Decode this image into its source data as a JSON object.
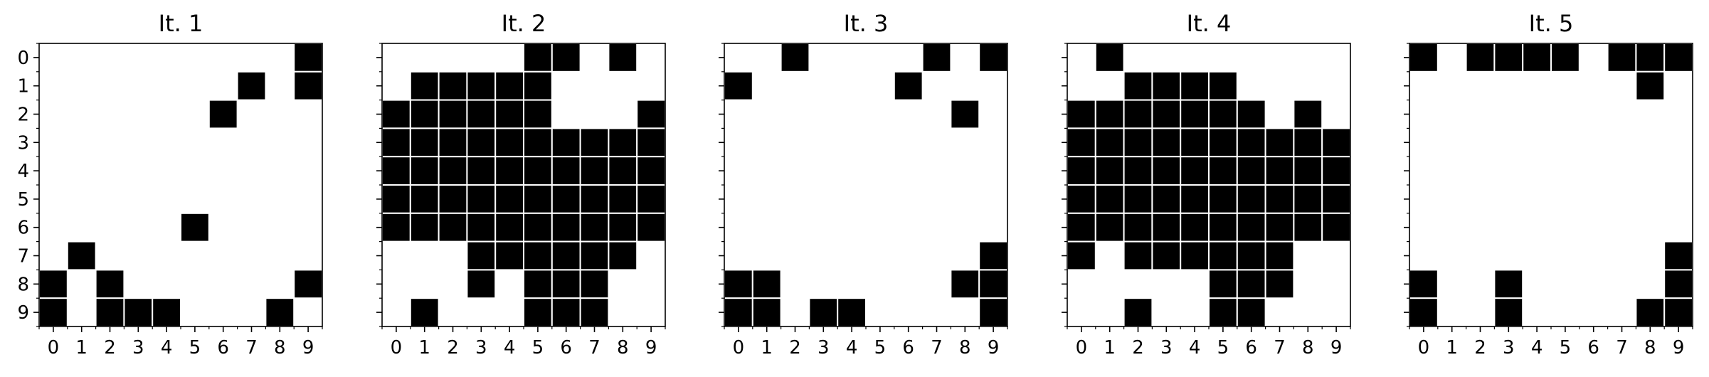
{
  "chart_data": [
    {
      "type": "heatmap",
      "title": "It. 1",
      "xticks": [
        "0",
        "1",
        "2",
        "3",
        "4",
        "5",
        "6",
        "7",
        "8",
        "9"
      ],
      "yticks": [
        "0",
        "1",
        "2",
        "3",
        "4",
        "5",
        "6",
        "7",
        "8",
        "9"
      ],
      "colors": {
        "filled": "#000000",
        "empty": "#ffffff",
        "grid": "#ffffff"
      },
      "grid": [
        [
          0,
          0,
          0,
          0,
          0,
          0,
          0,
          0,
          0,
          1
        ],
        [
          0,
          0,
          0,
          0,
          0,
          0,
          0,
          1,
          0,
          1
        ],
        [
          0,
          0,
          0,
          0,
          0,
          0,
          1,
          0,
          0,
          0
        ],
        [
          0,
          0,
          0,
          0,
          0,
          0,
          0,
          0,
          0,
          0
        ],
        [
          0,
          0,
          0,
          0,
          0,
          0,
          0,
          0,
          0,
          0
        ],
        [
          0,
          0,
          0,
          0,
          0,
          0,
          0,
          0,
          0,
          0
        ],
        [
          0,
          0,
          0,
          0,
          0,
          1,
          0,
          0,
          0,
          0
        ],
        [
          0,
          1,
          0,
          0,
          0,
          0,
          0,
          0,
          0,
          0
        ],
        [
          1,
          0,
          1,
          0,
          0,
          0,
          0,
          0,
          0,
          1
        ],
        [
          1,
          0,
          1,
          1,
          1,
          0,
          0,
          0,
          1,
          0
        ]
      ]
    },
    {
      "type": "heatmap",
      "title": "It. 2",
      "xticks": [
        "0",
        "1",
        "2",
        "3",
        "4",
        "5",
        "6",
        "7",
        "8",
        "9"
      ],
      "yticks": [],
      "colors": {
        "filled": "#000000",
        "empty": "#ffffff",
        "grid": "#ffffff"
      },
      "grid": [
        [
          0,
          0,
          0,
          0,
          0,
          1,
          1,
          0,
          1,
          0
        ],
        [
          0,
          1,
          1,
          1,
          1,
          1,
          0,
          0,
          0,
          0
        ],
        [
          1,
          1,
          1,
          1,
          1,
          1,
          0,
          0,
          0,
          1
        ],
        [
          1,
          1,
          1,
          1,
          1,
          1,
          1,
          1,
          1,
          1
        ],
        [
          1,
          1,
          1,
          1,
          1,
          1,
          1,
          1,
          1,
          1
        ],
        [
          1,
          1,
          1,
          1,
          1,
          1,
          1,
          1,
          1,
          1
        ],
        [
          1,
          1,
          1,
          1,
          1,
          1,
          1,
          1,
          1,
          1
        ],
        [
          0,
          0,
          0,
          1,
          1,
          1,
          1,
          1,
          1,
          0
        ],
        [
          0,
          0,
          0,
          1,
          0,
          1,
          1,
          1,
          0,
          0
        ],
        [
          0,
          1,
          0,
          0,
          0,
          1,
          1,
          1,
          0,
          0
        ]
      ]
    },
    {
      "type": "heatmap",
      "title": "It. 3",
      "xticks": [
        "0",
        "1",
        "2",
        "3",
        "4",
        "5",
        "6",
        "7",
        "8",
        "9"
      ],
      "yticks": [],
      "colors": {
        "filled": "#000000",
        "empty": "#ffffff",
        "grid": "#ffffff"
      },
      "grid": [
        [
          0,
          0,
          1,
          0,
          0,
          0,
          0,
          1,
          0,
          1
        ],
        [
          1,
          0,
          0,
          0,
          0,
          0,
          1,
          0,
          0,
          0
        ],
        [
          0,
          0,
          0,
          0,
          0,
          0,
          0,
          0,
          1,
          0
        ],
        [
          0,
          0,
          0,
          0,
          0,
          0,
          0,
          0,
          0,
          0
        ],
        [
          0,
          0,
          0,
          0,
          0,
          0,
          0,
          0,
          0,
          0
        ],
        [
          0,
          0,
          0,
          0,
          0,
          0,
          0,
          0,
          0,
          0
        ],
        [
          0,
          0,
          0,
          0,
          0,
          0,
          0,
          0,
          0,
          0
        ],
        [
          0,
          0,
          0,
          0,
          0,
          0,
          0,
          0,
          0,
          1
        ],
        [
          1,
          1,
          0,
          0,
          0,
          0,
          0,
          0,
          1,
          1
        ],
        [
          1,
          1,
          0,
          1,
          1,
          0,
          0,
          0,
          0,
          1
        ]
      ]
    },
    {
      "type": "heatmap",
      "title": "It. 4",
      "xticks": [
        "0",
        "1",
        "2",
        "3",
        "4",
        "5",
        "6",
        "7",
        "8",
        "9"
      ],
      "yticks": [],
      "colors": {
        "filled": "#000000",
        "empty": "#ffffff",
        "grid": "#ffffff"
      },
      "grid": [
        [
          0,
          1,
          0,
          0,
          0,
          0,
          0,
          0,
          0,
          0
        ],
        [
          0,
          0,
          1,
          1,
          1,
          1,
          0,
          0,
          0,
          0
        ],
        [
          1,
          1,
          1,
          1,
          1,
          1,
          1,
          0,
          1,
          0
        ],
        [
          1,
          1,
          1,
          1,
          1,
          1,
          1,
          1,
          1,
          1
        ],
        [
          1,
          1,
          1,
          1,
          1,
          1,
          1,
          1,
          1,
          1
        ],
        [
          1,
          1,
          1,
          1,
          1,
          1,
          1,
          1,
          1,
          1
        ],
        [
          1,
          1,
          1,
          1,
          1,
          1,
          1,
          1,
          1,
          1
        ],
        [
          1,
          0,
          1,
          1,
          1,
          1,
          1,
          1,
          0,
          0
        ],
        [
          0,
          0,
          0,
          0,
          0,
          1,
          1,
          1,
          0,
          0
        ],
        [
          0,
          0,
          1,
          0,
          0,
          1,
          1,
          0,
          0,
          0
        ]
      ]
    },
    {
      "type": "heatmap",
      "title": "It. 5",
      "xticks": [
        "0",
        "1",
        "2",
        "3",
        "4",
        "5",
        "6",
        "7",
        "8",
        "9"
      ],
      "yticks": [],
      "colors": {
        "filled": "#000000",
        "empty": "#ffffff",
        "grid": "#ffffff"
      },
      "grid": [
        [
          1,
          0,
          1,
          1,
          1,
          1,
          0,
          1,
          1,
          1
        ],
        [
          0,
          0,
          0,
          0,
          0,
          0,
          0,
          0,
          1,
          0
        ],
        [
          0,
          0,
          0,
          0,
          0,
          0,
          0,
          0,
          0,
          0
        ],
        [
          0,
          0,
          0,
          0,
          0,
          0,
          0,
          0,
          0,
          0
        ],
        [
          0,
          0,
          0,
          0,
          0,
          0,
          0,
          0,
          0,
          0
        ],
        [
          0,
          0,
          0,
          0,
          0,
          0,
          0,
          0,
          0,
          0
        ],
        [
          0,
          0,
          0,
          0,
          0,
          0,
          0,
          0,
          0,
          0
        ],
        [
          0,
          0,
          0,
          0,
          0,
          0,
          0,
          0,
          0,
          1
        ],
        [
          1,
          0,
          0,
          1,
          0,
          0,
          0,
          0,
          0,
          1
        ],
        [
          1,
          0,
          0,
          1,
          0,
          0,
          0,
          0,
          1,
          1
        ]
      ]
    }
  ]
}
